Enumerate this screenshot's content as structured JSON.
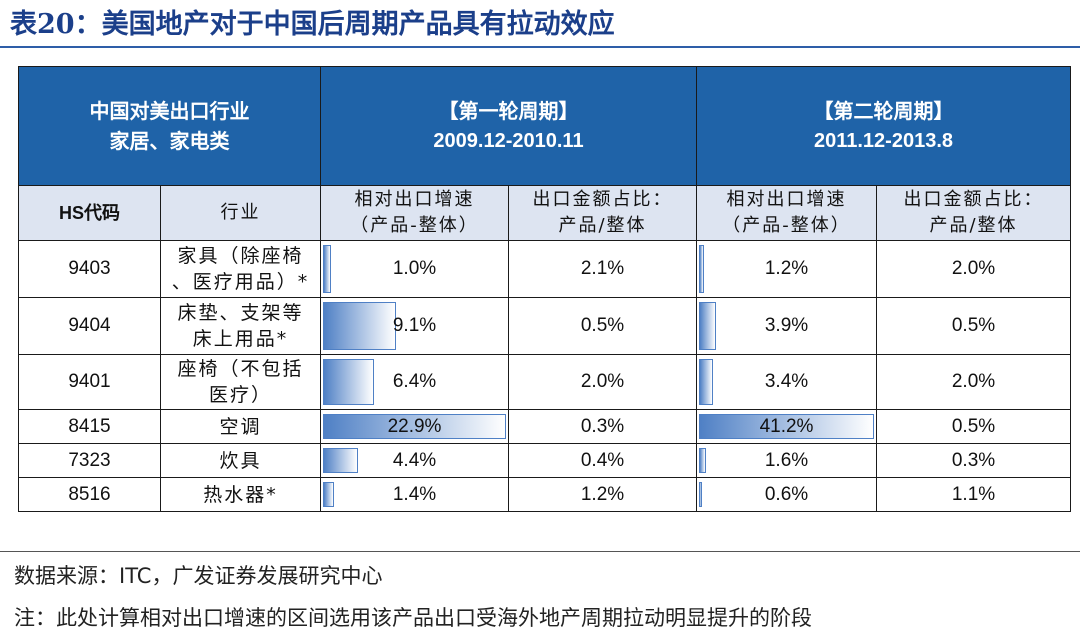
{
  "title": "表20：美国地产对于中国后周期产品具有拉动效应",
  "table": {
    "corner_line1": "中国对美出口行业",
    "corner_line2": "家居、家电类",
    "period1_label": "【第一轮周期】",
    "period1_range": "2009.12-2010.11",
    "period2_label": "【第二轮周期】",
    "period2_range": "2011.12-2013.8",
    "col_hs": "HS代码",
    "col_industry": "行业",
    "col_rel_line1": "相对出口增速",
    "col_rel_line2": "（产品-整体）",
    "col_share_line1": "出口金额占比：",
    "col_share_line2": "产品/整体",
    "rows": [
      {
        "code": "9403",
        "name1": "家具（除座椅",
        "name2": "、医疗用品）*",
        "p1_growth": "1.0%",
        "p1_growth_value": 1.0,
        "p1_share": "2.1%",
        "p2_growth": "1.2%",
        "p2_growth_value": 1.2,
        "p2_share": "2.0%"
      },
      {
        "code": "9404",
        "name1": "床垫、支架等",
        "name2": "床上用品*",
        "p1_growth": "9.1%",
        "p1_growth_value": 9.1,
        "p1_share": "0.5%",
        "p2_growth": "3.9%",
        "p2_growth_value": 3.9,
        "p2_share": "0.5%"
      },
      {
        "code": "9401",
        "name1": "座椅（不包括",
        "name2": "医疗）",
        "p1_growth": "6.4%",
        "p1_growth_value": 6.4,
        "p1_share": "2.0%",
        "p2_growth": "3.4%",
        "p2_growth_value": 3.4,
        "p2_share": "2.0%"
      },
      {
        "code": "8415",
        "name1": "空调",
        "name2": "",
        "p1_growth": "22.9%",
        "p1_growth_value": 22.9,
        "p1_share": "0.3%",
        "p2_growth": "41.2%",
        "p2_growth_value": 41.2,
        "p2_share": "0.5%"
      },
      {
        "code": "7323",
        "name1": "炊具",
        "name2": "",
        "p1_growth": "4.4%",
        "p1_growth_value": 4.4,
        "p1_share": "0.4%",
        "p2_growth": "1.6%",
        "p2_growth_value": 1.6,
        "p2_share": "0.3%"
      },
      {
        "code": "8516",
        "name1": "热水器*",
        "name2": "",
        "p1_growth": "1.4%",
        "p1_growth_value": 1.4,
        "p1_share": "1.2%",
        "p2_growth": "0.6%",
        "p2_growth_value": 0.6,
        "p2_share": "1.1%"
      }
    ]
  },
  "colors": {
    "header_bg": "#1f63a8",
    "subheader_bg": "#dde4f1",
    "bar": "#4f80c5",
    "title": "#1b3f8a"
  },
  "source": "数据来源：ITC，广发证券发展研究中心",
  "note": "注：此处计算相对出口增速的区间选用该产品出口受海外地产周期拉动明显提升的阶段"
}
